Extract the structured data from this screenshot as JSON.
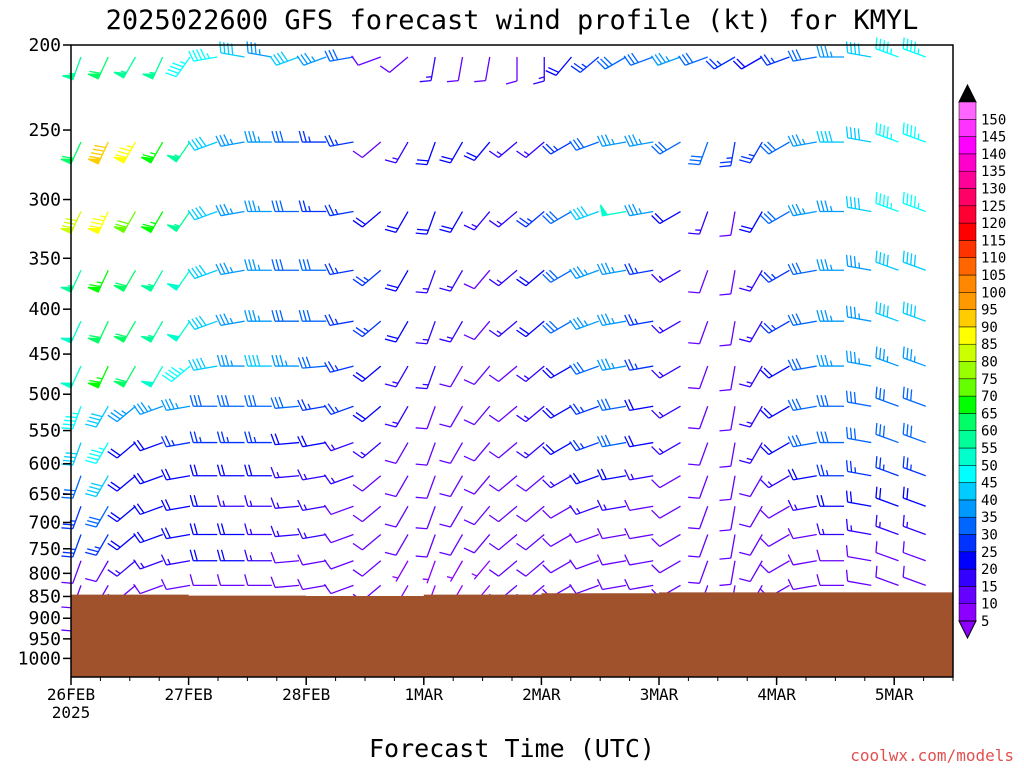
{
  "chart_data": {
    "type": "wind_barb_profile",
    "title": "2025022600 GFS forecast wind profile (kt) for KMYL",
    "xlabel": "Forecast Time (UTC)",
    "credit": "coolwx.com/models",
    "y_axis": {
      "scale": "log-pressure",
      "inverted": true,
      "ticks": [
        200,
        250,
        300,
        350,
        400,
        450,
        500,
        550,
        600,
        650,
        700,
        750,
        800,
        850,
        900,
        950,
        1000
      ],
      "range": [
        200,
        1050
      ]
    },
    "x_axis": {
      "ticks": [
        "26FEB",
        "27FEB",
        "28FEB",
        "1MAR",
        "2MAR",
        "3MAR",
        "4MAR",
        "5MAR"
      ],
      "sub_label": "2025"
    },
    "colorbar": {
      "ticks": [
        5,
        10,
        15,
        20,
        25,
        30,
        35,
        40,
        45,
        50,
        55,
        60,
        65,
        70,
        75,
        80,
        85,
        90,
        95,
        100,
        105,
        110,
        115,
        120,
        125,
        130,
        135,
        140,
        145,
        150
      ],
      "colors": [
        "#8b00ff",
        "#6600ff",
        "#3300ff",
        "#0000ff",
        "#0033ff",
        "#0066ff",
        "#0099ff",
        "#00ccff",
        "#00ffff",
        "#00ffcc",
        "#00ff99",
        "#00ff66",
        "#00ff00",
        "#66ff00",
        "#99ff00",
        "#ccff00",
        "#ffff00",
        "#ffcc00",
        "#ff9900",
        "#ff8800",
        "#ff6600",
        "#ff3300",
        "#ff0000",
        "#ff0033",
        "#ff0066",
        "#ff0099",
        "#ff00cc",
        "#ff00ff",
        "#ff33ff",
        "#ff66ff"
      ],
      "over_color": "#000000",
      "under_color": "#8b00ff"
    },
    "ground": {
      "color": "#a0522d",
      "surface_pressure_by_day": [
        846,
        848,
        849,
        846,
        843,
        841,
        841,
        841,
        841
      ]
    },
    "levels": [
      200,
      250,
      300,
      350,
      400,
      450,
      500,
      550,
      600,
      650,
      700,
      750,
      800,
      850
    ],
    "wind_speed_kt": [
      [
        55,
        60,
        55,
        55,
        45,
        45,
        40,
        35,
        40,
        35,
        30,
        10,
        10,
        15,
        10,
        10,
        10,
        15,
        20,
        25,
        30,
        30,
        35,
        30,
        25,
        20,
        25,
        30,
        35,
        40,
        45,
        45
      ],
      [
        60,
        90,
        85,
        65,
        55,
        40,
        35,
        35,
        30,
        25,
        25,
        10,
        15,
        20,
        20,
        20,
        15,
        15,
        25,
        30,
        35,
        35,
        30,
        30,
        25,
        25,
        30,
        35,
        40,
        40,
        45,
        45
      ],
      [
        80,
        85,
        70,
        65,
        55,
        40,
        35,
        35,
        30,
        25,
        25,
        20,
        20,
        20,
        20,
        15,
        15,
        25,
        30,
        40,
        50,
        35,
        20,
        15,
        10,
        20,
        30,
        35,
        35,
        40,
        45,
        45
      ],
      [
        55,
        65,
        60,
        55,
        50,
        40,
        35,
        35,
        30,
        30,
        25,
        25,
        20,
        15,
        15,
        10,
        15,
        20,
        30,
        35,
        35,
        25,
        15,
        10,
        10,
        15,
        25,
        30,
        35,
        35,
        40,
        40
      ],
      [
        50,
        60,
        60,
        55,
        50,
        40,
        35,
        35,
        30,
        30,
        25,
        25,
        20,
        15,
        15,
        10,
        15,
        20,
        30,
        35,
        35,
        25,
        15,
        10,
        10,
        15,
        25,
        30,
        35,
        35,
        40,
        40
      ],
      [
        50,
        65,
        60,
        50,
        45,
        40,
        35,
        40,
        35,
        30,
        25,
        20,
        15,
        15,
        10,
        10,
        10,
        15,
        20,
        30,
        35,
        25,
        15,
        10,
        10,
        15,
        20,
        30,
        35,
        35,
        35,
        35
      ],
      [
        45,
        40,
        35,
        35,
        35,
        30,
        30,
        30,
        30,
        25,
        25,
        20,
        15,
        10,
        10,
        10,
        10,
        15,
        20,
        25,
        30,
        20,
        15,
        10,
        10,
        15,
        20,
        30,
        30,
        30,
        30,
        30
      ],
      [
        40,
        45,
        20,
        20,
        25,
        25,
        25,
        25,
        20,
        20,
        15,
        15,
        10,
        10,
        10,
        10,
        10,
        15,
        20,
        25,
        30,
        20,
        15,
        10,
        10,
        15,
        20,
        30,
        30,
        30,
        30,
        30
      ],
      [
        30,
        40,
        20,
        20,
        20,
        20,
        20,
        20,
        15,
        15,
        15,
        10,
        10,
        10,
        10,
        10,
        10,
        10,
        15,
        20,
        20,
        15,
        10,
        10,
        10,
        10,
        15,
        20,
        25,
        25,
        25,
        25
      ],
      [
        25,
        30,
        20,
        20,
        20,
        20,
        15,
        15,
        15,
        15,
        10,
        10,
        10,
        10,
        10,
        10,
        10,
        10,
        10,
        15,
        15,
        10,
        10,
        10,
        10,
        10,
        10,
        15,
        20,
        20,
        20,
        20
      ],
      [
        25,
        25,
        20,
        20,
        20,
        20,
        20,
        15,
        15,
        15,
        10,
        10,
        10,
        10,
        10,
        10,
        10,
        10,
        10,
        10,
        10,
        10,
        10,
        10,
        10,
        10,
        10,
        10,
        15,
        15,
        15,
        15
      ],
      [
        10,
        10,
        15,
        15,
        15,
        20,
        20,
        15,
        10,
        10,
        10,
        10,
        5,
        5,
        5,
        5,
        10,
        10,
        10,
        10,
        10,
        10,
        10,
        10,
        10,
        10,
        10,
        10,
        10,
        10,
        10,
        10
      ],
      [
        10,
        10,
        10,
        10,
        10,
        10,
        10,
        10,
        10,
        10,
        10,
        10,
        5,
        5,
        5,
        5,
        10,
        10,
        10,
        10,
        10,
        10,
        10,
        10,
        10,
        10,
        10,
        10,
        10,
        10,
        10,
        10
      ],
      [
        10,
        10,
        10,
        10,
        10,
        10,
        10,
        10,
        5,
        5,
        5,
        5,
        5,
        5,
        5,
        5,
        5,
        5,
        5,
        5,
        5,
        5,
        5,
        5,
        5,
        5,
        5,
        5,
        5,
        5,
        5,
        5
      ]
    ],
    "wind_dir_deg": [
      [
        200,
        205,
        210,
        205,
        215,
        260,
        280,
        280,
        250,
        250,
        260,
        250,
        230,
        190,
        190,
        190,
        180,
        180,
        220,
        230,
        240,
        250,
        250,
        250,
        240,
        240,
        250,
        260,
        270,
        280,
        290,
        290
      ],
      [
        205,
        205,
        210,
        210,
        215,
        250,
        260,
        270,
        270,
        270,
        260,
        230,
        210,
        200,
        210,
        220,
        230,
        230,
        240,
        250,
        260,
        260,
        240,
        200,
        190,
        210,
        240,
        260,
        270,
        280,
        290,
        290
      ],
      [
        205,
        205,
        210,
        210,
        215,
        250,
        260,
        270,
        270,
        270,
        260,
        230,
        210,
        200,
        210,
        220,
        230,
        230,
        240,
        250,
        260,
        260,
        240,
        200,
        190,
        210,
        240,
        260,
        270,
        280,
        290,
        290
      ],
      [
        205,
        205,
        210,
        210,
        215,
        250,
        260,
        270,
        270,
        270,
        260,
        230,
        210,
        200,
        210,
        220,
        230,
        230,
        240,
        250,
        260,
        260,
        240,
        200,
        190,
        210,
        240,
        260,
        270,
        280,
        290,
        290
      ],
      [
        205,
        205,
        210,
        210,
        215,
        250,
        260,
        270,
        270,
        270,
        260,
        230,
        210,
        200,
        210,
        220,
        230,
        230,
        240,
        250,
        260,
        260,
        240,
        200,
        190,
        210,
        240,
        260,
        270,
        280,
        290,
        290
      ],
      [
        205,
        205,
        210,
        210,
        230,
        260,
        270,
        270,
        270,
        265,
        255,
        230,
        210,
        200,
        210,
        220,
        230,
        230,
        240,
        250,
        260,
        260,
        240,
        200,
        190,
        210,
        240,
        260,
        270,
        280,
        290,
        290
      ],
      [
        200,
        210,
        230,
        250,
        260,
        270,
        270,
        270,
        265,
        260,
        250,
        230,
        210,
        200,
        210,
        220,
        230,
        230,
        240,
        250,
        260,
        260,
        240,
        200,
        190,
        210,
        240,
        260,
        270,
        280,
        290,
        290
      ],
      [
        200,
        210,
        230,
        250,
        260,
        270,
        270,
        270,
        265,
        260,
        250,
        230,
        210,
        200,
        210,
        220,
        230,
        230,
        240,
        250,
        260,
        260,
        240,
        200,
        190,
        210,
        240,
        260,
        270,
        280,
        290,
        290
      ],
      [
        200,
        210,
        230,
        250,
        260,
        270,
        270,
        270,
        265,
        260,
        250,
        230,
        210,
        200,
        210,
        220,
        230,
        230,
        240,
        250,
        260,
        260,
        240,
        200,
        190,
        210,
        240,
        260,
        270,
        280,
        290,
        290
      ],
      [
        200,
        210,
        230,
        250,
        260,
        270,
        270,
        270,
        265,
        260,
        250,
        230,
        210,
        200,
        210,
        220,
        230,
        230,
        240,
        250,
        260,
        260,
        240,
        200,
        190,
        210,
        240,
        260,
        270,
        280,
        290,
        290
      ],
      [
        200,
        210,
        230,
        250,
        260,
        270,
        270,
        270,
        265,
        260,
        250,
        230,
        210,
        200,
        210,
        220,
        230,
        230,
        240,
        250,
        260,
        260,
        240,
        200,
        190,
        210,
        240,
        260,
        270,
        280,
        290,
        290
      ],
      [
        200,
        210,
        230,
        250,
        260,
        270,
        270,
        270,
        265,
        260,
        250,
        230,
        210,
        200,
        210,
        220,
        230,
        230,
        240,
        250,
        260,
        260,
        240,
        200,
        190,
        210,
        240,
        260,
        270,
        280,
        290,
        290
      ],
      [
        200,
        210,
        230,
        250,
        260,
        270,
        270,
        270,
        265,
        260,
        250,
        230,
        210,
        200,
        210,
        220,
        230,
        230,
        240,
        250,
        260,
        260,
        240,
        200,
        190,
        210,
        240,
        260,
        270,
        280,
        290,
        290
      ],
      [
        200,
        210,
        230,
        250,
        260,
        270,
        270,
        270,
        265,
        260,
        250,
        230,
        210,
        200,
        210,
        220,
        230,
        230,
        240,
        250,
        260,
        260,
        240,
        200,
        190,
        210,
        240,
        260,
        270,
        280,
        290,
        290
      ]
    ]
  }
}
